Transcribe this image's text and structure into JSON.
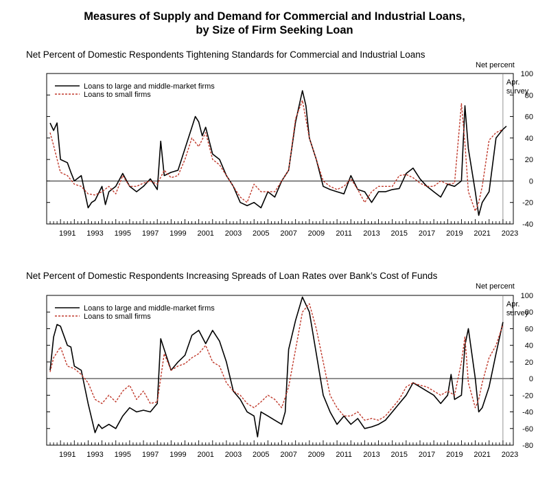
{
  "title_line1": "Measures of Supply and Demand for Commercial and Industrial Loans,",
  "title_line2": "by Size of Firm Seeking Loan",
  "colors": {
    "large": "#000000",
    "small": "#c0392b"
  },
  "chart_data": [
    {
      "type": "line",
      "title": "Net Percent of Domestic Respondents Tightening Standards for Commercial and Industrial Loans",
      "ylabel": "Net percent",
      "annotation": "Apr.\nsurvey",
      "legend_location": "top-left",
      "xlim": [
        1990.0,
        2023.75
      ],
      "ylim": [
        -40,
        100
      ],
      "yticks": [
        -40,
        -20,
        0,
        20,
        40,
        60,
        80,
        100
      ],
      "xticks": [
        "1991",
        "1993",
        "1995",
        "1997",
        "1999",
        "2001",
        "2003",
        "2005",
        "2007",
        "2009",
        "2011",
        "2013",
        "2015",
        "2017",
        "2019",
        "2021",
        "2023"
      ],
      "series": [
        {
          "name": "Loans to large and middle-market firms",
          "x": [
            1990.25,
            1990.5,
            1990.75,
            1991,
            1991.5,
            1991.75,
            1992,
            1992.5,
            1993,
            1993.25,
            1993.5,
            1994,
            1994.25,
            1994.5,
            1995,
            1995.5,
            1996,
            1996.5,
            1997,
            1997.5,
            1998,
            1998.25,
            1998.5,
            1999,
            1999.5,
            2000,
            2000.5,
            2000.75,
            2001,
            2001.25,
            2001.5,
            2002,
            2002.5,
            2003,
            2003.25,
            2003.5,
            2004,
            2004.5,
            2005,
            2005.5,
            2006,
            2006.5,
            2007,
            2007.5,
            2008,
            2008.5,
            2008.75,
            2009,
            2009.5,
            2010,
            2010.5,
            2011,
            2011.5,
            2012,
            2012.5,
            2013,
            2013.5,
            2014,
            2014.5,
            2015,
            2015.5,
            2016,
            2016.5,
            2017,
            2017.5,
            2018,
            2018.5,
            2019,
            2019.5,
            2020,
            2020.25,
            2020.5,
            2021,
            2021.25,
            2021.5,
            2022,
            2022.5,
            2023,
            2023.25
          ],
          "y": [
            54,
            47,
            54,
            20,
            17,
            8,
            0,
            5,
            -25,
            -20,
            -18,
            -5,
            -22,
            -10,
            -5,
            7,
            -5,
            -10,
            -5,
            2,
            -8,
            37,
            5,
            8,
            10,
            30,
            50,
            60,
            55,
            42,
            50,
            25,
            20,
            5,
            0,
            -5,
            -20,
            -23,
            -20,
            -25,
            -10,
            -15,
            0,
            10,
            55,
            84,
            70,
            40,
            20,
            -5,
            -8,
            -10,
            -12,
            5,
            -8,
            -10,
            -20,
            -10,
            -10,
            -8,
            -7,
            7,
            12,
            2,
            -5,
            -10,
            -15,
            -3,
            -5,
            0,
            70,
            30,
            -10,
            -32,
            -20,
            -10,
            40,
            48,
            51
          ]
        },
        {
          "name": "Loans to small firms",
          "x": [
            1990.25,
            1990.5,
            1991,
            1991.5,
            1992,
            1992.5,
            1993,
            1993.5,
            1994,
            1994.5,
            1995,
            1995.5,
            1996,
            1996.5,
            1997,
            1997.5,
            1998,
            1998.5,
            1999,
            1999.5,
            2000,
            2000.5,
            2001,
            2001.5,
            2002,
            2002.5,
            2003,
            2003.5,
            2004,
            2004.5,
            2005,
            2005.5,
            2006,
            2006.5,
            2007,
            2007.5,
            2008,
            2008.5,
            2009,
            2009.5,
            2010,
            2010.5,
            2011,
            2011.5,
            2012,
            2012.5,
            2013,
            2013.5,
            2014,
            2014.5,
            2015,
            2015.5,
            2016,
            2016.5,
            2017,
            2017.5,
            2018,
            2018.5,
            2019,
            2019.5,
            2020,
            2020.25,
            2020.5,
            2021,
            2021.25,
            2021.5,
            2022,
            2022.5,
            2023
          ],
          "y": [
            45,
            33,
            8,
            5,
            -3,
            -5,
            -12,
            -13,
            -10,
            -5,
            -12,
            5,
            -5,
            -5,
            -2,
            0,
            -3,
            10,
            3,
            5,
            20,
            40,
            32,
            45,
            20,
            15,
            5,
            -5,
            -15,
            -20,
            -3,
            -10,
            -10,
            -10,
            0,
            10,
            58,
            75,
            40,
            20,
            0,
            -5,
            -8,
            -5,
            2,
            -8,
            -20,
            -10,
            -5,
            -5,
            -5,
            5,
            6,
            3,
            -2,
            -5,
            -5,
            0,
            -3,
            -2,
            72,
            35,
            -10,
            -28,
            -20,
            -5,
            38,
            45,
            48
          ]
        }
      ]
    },
    {
      "type": "line",
      "title": "Net Percent of Domestic Respondents Increasing Spreads of Loan Rates over Bank’s Cost of Funds",
      "ylabel": "Net percent",
      "annotation": "Apr.\nsurvey",
      "legend_location": "top-left",
      "xlim": [
        1990.0,
        2023.75
      ],
      "ylim": [
        -80,
        100
      ],
      "yticks": [
        -80,
        -60,
        -40,
        -20,
        0,
        20,
        40,
        60,
        80,
        100
      ],
      "xticks": [
        "1991",
        "1993",
        "1995",
        "1997",
        "1999",
        "2001",
        "2003",
        "2005",
        "2007",
        "2009",
        "2011",
        "2013",
        "2015",
        "2017",
        "2019",
        "2021",
        "2023"
      ],
      "series": [
        {
          "name": "Loans to large and middle-market firms",
          "x": [
            1990.25,
            1990.5,
            1990.75,
            1991,
            1991.5,
            1991.75,
            1992,
            1992.5,
            1993,
            1993.5,
            1993.75,
            1994,
            1994.5,
            1995,
            1995.5,
            1996,
            1996.5,
            1997,
            1997.5,
            1997.75,
            1998,
            1998.25,
            1998.5,
            1999,
            1999.5,
            2000,
            2000.5,
            2001,
            2001.5,
            2002,
            2002.5,
            2003,
            2003.5,
            2004,
            2004.5,
            2005,
            2005.25,
            2005.5,
            2006,
            2006.5,
            2007,
            2007.25,
            2007.5,
            2008,
            2008.5,
            2009,
            2009.5,
            2010,
            2010.5,
            2011,
            2011.5,
            2012,
            2012.5,
            2013,
            2013.5,
            2014,
            2014.5,
            2015,
            2015.5,
            2016,
            2016.5,
            2017,
            2017.5,
            2018,
            2018.5,
            2019,
            2019.25,
            2019.5,
            2020,
            2020.25,
            2020.5,
            2021,
            2021.25,
            2021.5,
            2022,
            2022.5,
            2023
          ],
          "y": [
            10,
            50,
            65,
            63,
            40,
            38,
            15,
            10,
            -30,
            -65,
            -55,
            -60,
            -55,
            -60,
            -45,
            -35,
            -40,
            -38,
            -40,
            -35,
            -30,
            48,
            35,
            10,
            20,
            28,
            52,
            58,
            42,
            58,
            45,
            20,
            -15,
            -25,
            -40,
            -45,
            -70,
            -40,
            -45,
            -50,
            -55,
            -40,
            35,
            70,
            98,
            80,
            30,
            -20,
            -40,
            -55,
            -45,
            -55,
            -48,
            -60,
            -58,
            -55,
            -50,
            -40,
            -30,
            -20,
            -5,
            -10,
            -15,
            -20,
            -30,
            -20,
            5,
            -25,
            -20,
            40,
            60,
            0,
            -40,
            -35,
            -10,
            30,
            68
          ]
        },
        {
          "name": "Loans to small firms",
          "x": [
            1990.25,
            1990.5,
            1991,
            1991.5,
            1992,
            1992.5,
            1993,
            1993.5,
            1994,
            1994.5,
            1995,
            1995.5,
            1996,
            1996.5,
            1997,
            1997.5,
            1998,
            1998.5,
            1999,
            1999.5,
            2000,
            2000.5,
            2001,
            2001.5,
            2002,
            2002.5,
            2003,
            2003.5,
            2004,
            2004.5,
            2005,
            2005.5,
            2006,
            2006.5,
            2007,
            2007.5,
            2008,
            2008.5,
            2009,
            2009.5,
            2010,
            2010.5,
            2011,
            2011.5,
            2012,
            2012.5,
            2013,
            2013.5,
            2014,
            2014.5,
            2015,
            2015.5,
            2016,
            2016.5,
            2017,
            2017.5,
            2018,
            2018.5,
            2019,
            2019.5,
            2020,
            2020.25,
            2020.5,
            2021,
            2021.25,
            2021.5,
            2022,
            2022.5,
            2023
          ],
          "y": [
            8,
            25,
            38,
            15,
            12,
            5,
            -5,
            -25,
            -30,
            -20,
            -28,
            -15,
            -8,
            -25,
            -15,
            -30,
            -28,
            30,
            10,
            15,
            18,
            25,
            30,
            40,
            20,
            15,
            -5,
            -15,
            -20,
            -30,
            -35,
            -28,
            -20,
            -25,
            -35,
            -10,
            35,
            80,
            90,
            60,
            20,
            -20,
            -35,
            -45,
            -45,
            -40,
            -50,
            -48,
            -50,
            -45,
            -35,
            -25,
            -10,
            -5,
            -8,
            -10,
            -15,
            -20,
            -15,
            -20,
            20,
            50,
            -5,
            -35,
            -25,
            -5,
            25,
            40,
            65
          ]
        }
      ]
    }
  ]
}
